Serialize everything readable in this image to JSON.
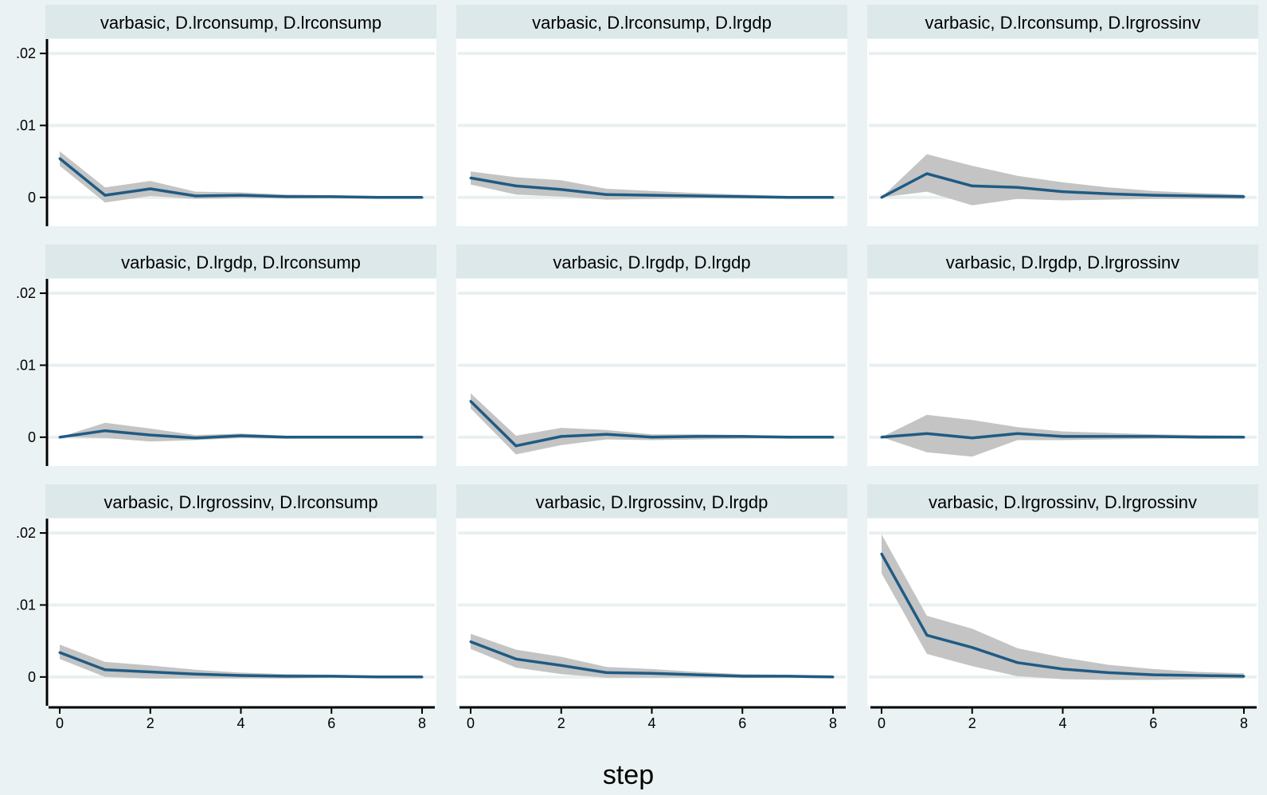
{
  "chart_data": {
    "type": "line",
    "layout": "3x3 facet grid",
    "xlabel": "step",
    "xlim": [
      0,
      8
    ],
    "xticks": [
      "0",
      "2",
      "4",
      "6",
      "8"
    ],
    "ylim": [
      -0.004,
      0.022
    ],
    "yticks": [
      ".02",
      ".01",
      "0"
    ],
    "ytick_values": [
      0.02,
      0.01,
      0
    ],
    "grid": true,
    "legend": "none",
    "colors": {
      "page_background": "#eaf2f3",
      "panel_background": "#ffffff",
      "title_strip": "#dce8ea",
      "gridline": "#e8f0f1",
      "line": "#1f5b83",
      "confidence_band": "#c4c4c4",
      "axis": "#000000"
    },
    "x": [
      0,
      1,
      2,
      3,
      4,
      5,
      6,
      7,
      8
    ],
    "panels": [
      {
        "title": "varbasic, D.lrconsump, D.lrconsump",
        "values": [
          0.0054,
          0.0003,
          0.0012,
          0.0002,
          0.0003,
          0.0001,
          0.0001,
          0.0,
          0.0
        ],
        "lower": [
          0.0044,
          -0.0007,
          0.0002,
          -0.0002,
          -0.0001,
          -0.0001,
          -0.0001,
          -0.0001,
          -0.0001
        ],
        "upper": [
          0.0064,
          0.0014,
          0.0023,
          0.0008,
          0.0007,
          0.0004,
          0.0003,
          0.0002,
          0.0001
        ]
      },
      {
        "title": "varbasic, D.lrconsump, D.lrgdp",
        "values": [
          0.0027,
          0.0016,
          0.0011,
          0.0004,
          0.0003,
          0.0002,
          0.0001,
          0.0,
          0.0
        ],
        "lower": [
          0.0018,
          0.0004,
          0.0001,
          -0.0003,
          -0.0002,
          -0.0001,
          -0.0001,
          -0.0001,
          -0.0001
        ],
        "upper": [
          0.0036,
          0.0028,
          0.0024,
          0.0012,
          0.0009,
          0.0006,
          0.0004,
          0.0002,
          0.0001
        ]
      },
      {
        "title": "varbasic, D.lrconsump, D.lrgrossinv",
        "values": [
          0.0,
          0.0033,
          0.0016,
          0.0014,
          0.0008,
          0.0005,
          0.0003,
          0.0002,
          0.0001
        ],
        "lower": [
          0.0,
          0.0008,
          -0.0011,
          -0.0002,
          -0.0004,
          -0.0003,
          -0.0002,
          -0.0002,
          -0.0002
        ],
        "upper": [
          0.0,
          0.006,
          0.0044,
          0.003,
          0.0021,
          0.0014,
          0.0009,
          0.0006,
          0.0004
        ]
      },
      {
        "title": "varbasic, D.lrgdp, D.lrconsump",
        "values": [
          0.0,
          0.0009,
          0.0003,
          -0.0001,
          0.0002,
          0.0,
          0.0,
          0.0,
          0.0
        ],
        "lower": [
          0.0,
          -0.0001,
          -0.0006,
          -0.0004,
          -0.0001,
          -0.0002,
          -0.0001,
          -0.0001,
          -0.0001
        ],
        "upper": [
          0.0,
          0.002,
          0.0012,
          0.0003,
          0.0005,
          0.0002,
          0.0001,
          0.0001,
          0.0001
        ]
      },
      {
        "title": "varbasic, D.lrgdp, D.lrgdp",
        "values": [
          0.005,
          -0.0012,
          0.0001,
          0.0004,
          0.0,
          0.0001,
          0.0001,
          0.0,
          0.0
        ],
        "lower": [
          0.004,
          -0.0024,
          -0.0011,
          -0.0003,
          -0.0004,
          -0.0003,
          -0.0002,
          -0.0001,
          -0.0001
        ],
        "upper": [
          0.0061,
          0.0002,
          0.0013,
          0.001,
          0.0004,
          0.0004,
          0.0003,
          0.0002,
          0.0001
        ]
      },
      {
        "title": "varbasic, D.lrgdp, D.lrgrossinv",
        "values": [
          0.0,
          0.0005,
          -0.0001,
          0.0005,
          0.0001,
          0.0001,
          0.0001,
          0.0,
          0.0
        ],
        "lower": [
          0.0,
          -0.0021,
          -0.0027,
          -0.0004,
          -0.0004,
          -0.0003,
          -0.0002,
          -0.0001,
          -0.0001
        ],
        "upper": [
          0.0,
          0.0031,
          0.0024,
          0.0014,
          0.0008,
          0.0006,
          0.0004,
          0.0003,
          0.0002
        ]
      },
      {
        "title": "varbasic, D.lrgrossinv, D.lrconsump",
        "values": [
          0.0034,
          0.001,
          0.0007,
          0.0004,
          0.0002,
          0.0001,
          0.0001,
          0.0,
          0.0
        ],
        "lower": [
          0.0025,
          0.0,
          -0.0002,
          -0.0002,
          -0.0002,
          -0.0002,
          -0.0001,
          -0.0001,
          -0.0001
        ],
        "upper": [
          0.0045,
          0.0021,
          0.0016,
          0.001,
          0.0006,
          0.0004,
          0.0003,
          0.0002,
          0.0001
        ]
      },
      {
        "title": "varbasic, D.lrgrossinv, D.lrgdp",
        "values": [
          0.0049,
          0.0025,
          0.0016,
          0.0006,
          0.0005,
          0.0003,
          0.0001,
          0.0001,
          0.0
        ],
        "lower": [
          0.0039,
          0.0013,
          0.0004,
          -0.0001,
          -0.0001,
          -0.0001,
          -0.0001,
          -0.0001,
          -0.0001
        ],
        "upper": [
          0.006,
          0.0038,
          0.0028,
          0.0014,
          0.0011,
          0.0007,
          0.0004,
          0.0003,
          0.0002
        ]
      },
      {
        "title": "varbasic, D.lrgrossinv, D.lrgrossinv",
        "values": [
          0.0171,
          0.0058,
          0.0041,
          0.002,
          0.0011,
          0.0006,
          0.0003,
          0.0002,
          0.0001
        ],
        "lower": [
          0.0144,
          0.0032,
          0.0015,
          0.0001,
          -0.0003,
          -0.0004,
          -0.0004,
          -0.0003,
          -0.0002
        ],
        "upper": [
          0.0198,
          0.0085,
          0.0067,
          0.004,
          0.0027,
          0.0017,
          0.0011,
          0.0007,
          0.0005
        ]
      }
    ]
  }
}
